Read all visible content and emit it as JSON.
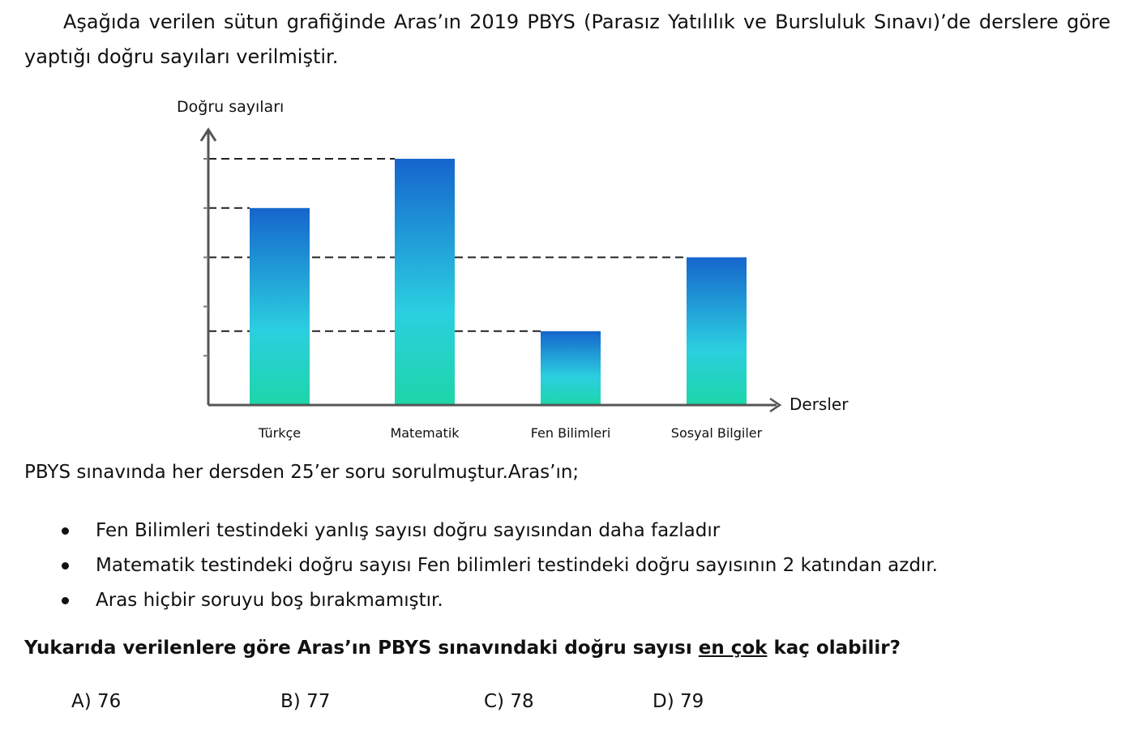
{
  "intro": "Aşağıda verilen sütun grafiğinde Aras’ın 2019 PBYS (Parasız Yatılılık  ve Bursluluk Sınavı)’de derslere göre yaptığı doğru sayıları verilmiştir.",
  "chart_data": {
    "type": "bar",
    "ylabel": "Doğru sayıları",
    "xlabel": "Dersler",
    "categories": [
      "Türkçe",
      "Matematik",
      "Fen Bilimleri",
      "Sosyal Bilgiler"
    ],
    "values": [
      8,
      10,
      3,
      6
    ],
    "ylim": [
      0,
      10
    ],
    "y_ticks": [
      2,
      4,
      6,
      8,
      10
    ],
    "y_tick_labels_shown": false,
    "reference_lines": [
      10,
      8,
      6,
      3
    ],
    "grid": false,
    "bar_gradient": [
      "#1565cc",
      "#2bcfe0",
      "#1dd6a8"
    ],
    "values_are_relative_not_to_scale": true
  },
  "lead": "PBYS sınavında her dersden 25’er soru sorulmuştur.Aras’ın;",
  "conditions": [
    "Fen Bilimleri testindeki yanlış sayısı  doğru sayısından daha fazladır",
    "Matematik testindeki doğru sayısı Fen bilimleri testindeki doğru sayısının 2 katından azdır.",
    "Aras hiçbir soruyu boş bırakmamıştır."
  ],
  "question": {
    "before": "Yukarıda verilenlere göre Aras’ın PBYS sınavındaki doğru sayısı ",
    "emphasis": "en çok",
    "after": " kaç olabilir?"
  },
  "options": [
    "A) 76",
    "B) 77",
    "C) 78",
    "D) 79"
  ]
}
